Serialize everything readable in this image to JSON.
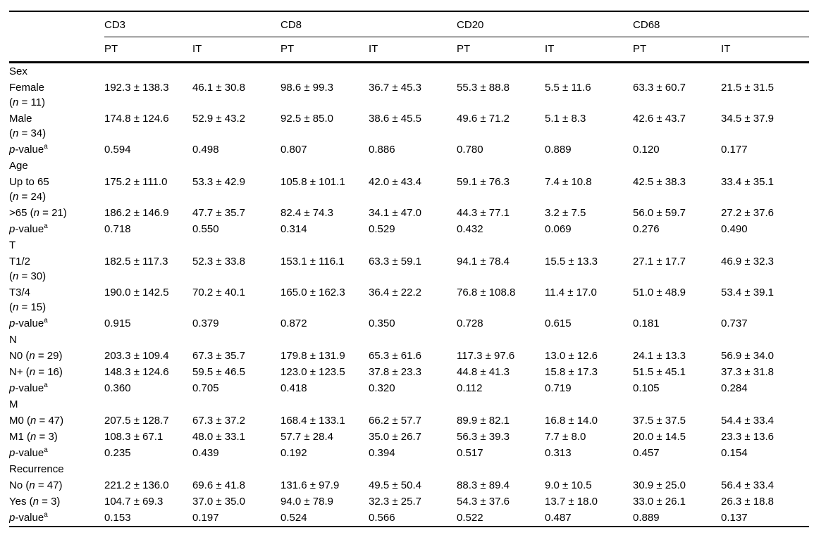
{
  "table": {
    "header": {
      "groups": [
        {
          "label": "CD3"
        },
        {
          "label": "CD8"
        },
        {
          "label": "CD20"
        },
        {
          "label": "CD68"
        }
      ],
      "subcolumns": [
        "PT",
        "IT"
      ]
    },
    "rows": [
      {
        "type": "section",
        "label": "Sex"
      },
      {
        "type": "data",
        "label": "Female",
        "n_label": "(n = 11)",
        "two_line": true,
        "values": [
          "192.3 ± 138.3",
          "46.1 ± 30.8",
          "98.6 ± 99.3",
          "36.7 ± 45.3",
          "55.3 ± 88.8",
          "5.5 ± 11.6",
          "63.3 ± 60.7",
          "21.5 ± 31.5"
        ]
      },
      {
        "type": "data",
        "label": "Male",
        "n_label": "(n = 34)",
        "two_line": true,
        "values": [
          "174.8 ± 124.6",
          "52.9 ± 43.2",
          "92.5 ± 85.0",
          "38.6 ± 45.5",
          "49.6 ± 71.2",
          "5.1 ± 8.3",
          "42.6 ± 43.7",
          "34.5 ± 37.9"
        ]
      },
      {
        "type": "pvalue",
        "label": "p-value",
        "sup": "a",
        "values": [
          "0.594",
          "0.498",
          "0.807",
          "0.886",
          "0.780",
          "0.889",
          "0.120",
          "0.177"
        ]
      },
      {
        "type": "section",
        "label": "Age"
      },
      {
        "type": "data",
        "label": "Up to 65",
        "n_label": "(n = 24)",
        "two_line": true,
        "values": [
          "175.2 ± 111.0",
          "53.3 ± 42.9",
          "105.8 ± 101.1",
          "42.0 ± 43.4",
          "59.1 ± 76.3",
          "7.4 ± 10.8",
          "42.5 ± 38.3",
          "33.4 ± 35.1"
        ]
      },
      {
        "type": "data",
        "label": ">65",
        "n_label": "(n = 21)",
        "two_line": false,
        "values": [
          "186.2 ± 146.9",
          "47.7 ± 35.7",
          "82.4 ± 74.3",
          "34.1 ± 47.0",
          "44.3 ± 77.1",
          "3.2 ± 7.5",
          "56.0 ± 59.7",
          "27.2 ± 37.6"
        ]
      },
      {
        "type": "pvalue",
        "label": "p-value",
        "sup": "a",
        "values": [
          "0.718",
          "0.550",
          "0.314",
          "0.529",
          "0.432",
          "0.069",
          "0.276",
          "0.490"
        ]
      },
      {
        "type": "section",
        "label": "T"
      },
      {
        "type": "data",
        "label": "T1/2",
        "n_label": "(n = 30)",
        "two_line": true,
        "values": [
          "182.5 ± 117.3",
          "52.3 ± 33.8",
          "153.1 ± 116.1",
          "63.3 ± 59.1",
          "94.1 ± 78.4",
          "15.5 ± 13.3",
          "27.1 ± 17.7",
          "46.9 ± 32.3"
        ]
      },
      {
        "type": "data",
        "label": "T3/4",
        "n_label": "(n = 15)",
        "two_line": true,
        "values": [
          "190.0 ± 142.5",
          "70.2 ± 40.1",
          "165.0 ± 162.3",
          "36.4 ± 22.2",
          "76.8 ± 108.8",
          "11.4 ± 17.0",
          "51.0 ± 48.9",
          "53.4 ± 39.1"
        ]
      },
      {
        "type": "pvalue",
        "label": "p-value",
        "sup": "a",
        "values": [
          "0.915",
          "0.379",
          "0.872",
          "0.350",
          "0.728",
          "0.615",
          "0.181",
          "0.737"
        ]
      },
      {
        "type": "section",
        "label": "N"
      },
      {
        "type": "data",
        "label": "N0",
        "n_label": "(n = 29)",
        "two_line": false,
        "values": [
          "203.3 ± 109.4",
          "67.3 ± 35.7",
          "179.8 ± 131.9",
          "65.3 ± 61.6",
          "117.3 ± 97.6",
          "13.0 ± 12.6",
          "24.1 ± 13.3",
          "56.9 ± 34.0"
        ]
      },
      {
        "type": "data",
        "label": "N+",
        "n_label": "(n = 16)",
        "two_line": false,
        "values": [
          "148.3 ± 124.6",
          "59.5 ± 46.5",
          "123.0 ± 123.5",
          "37.8 ± 23.3",
          "44.8 ± 41.3",
          "15.8 ± 17.3",
          "51.5 ± 45.1",
          "37.3 ± 31.8"
        ]
      },
      {
        "type": "pvalue",
        "label": "p-value",
        "sup": "a",
        "values": [
          "0.360",
          "0.705",
          "0.418",
          "0.320",
          "0.112",
          "0.719",
          "0.105",
          "0.284"
        ]
      },
      {
        "type": "section",
        "label": "M"
      },
      {
        "type": "data",
        "label": "M0",
        "n_label": "(n = 47)",
        "two_line": false,
        "values": [
          "207.5 ± 128.7",
          "67.3 ± 37.2",
          "168.4 ± 133.1",
          "66.2 ± 57.7",
          "89.9 ± 82.1",
          "16.8 ± 14.0",
          "37.5 ± 37.5",
          "54.4 ± 33.4"
        ]
      },
      {
        "type": "data",
        "label": "M1",
        "n_label": "(n = 3)",
        "two_line": false,
        "values": [
          "108.3 ± 67.1",
          "48.0 ± 33.1",
          "57.7 ± 28.4",
          "35.0 ± 26.7",
          "56.3 ± 39.3",
          "7.7 ± 8.0",
          "20.0 ± 14.5",
          "23.3 ± 13.6"
        ]
      },
      {
        "type": "pvalue",
        "label": "p-value",
        "sup": "a",
        "values": [
          "0.235",
          "0.439",
          "0.192",
          "0.394",
          "0.517",
          "0.313",
          "0.457",
          "0.154"
        ]
      },
      {
        "type": "section",
        "label": "Recurrence"
      },
      {
        "type": "data",
        "label": "No",
        "n_label": "(n = 47)",
        "two_line": false,
        "values": [
          "221.2 ± 136.0",
          "69.6 ± 41.8",
          "131.6 ± 97.9",
          "49.5 ± 50.4",
          "88.3 ± 89.4",
          "9.0 ± 10.5",
          "30.9 ± 25.0",
          "56.4 ± 33.4"
        ]
      },
      {
        "type": "data",
        "label": "Yes",
        "n_label": "(n = 3)",
        "two_line": false,
        "values": [
          "104.7 ± 69.3",
          "37.0 ± 35.0",
          "94.0 ± 78.9",
          "32.3 ± 25.7",
          "54.3 ± 37.6",
          "13.7 ± 18.0",
          "33.0 ± 26.1",
          "26.3 ± 18.8"
        ]
      },
      {
        "type": "pvalue",
        "label": "p-value",
        "sup": "a",
        "values": [
          "0.153",
          "0.197",
          "0.524",
          "0.566",
          "0.522",
          "0.487",
          "0.889",
          "0.137"
        ]
      }
    ]
  },
  "colors": {
    "background": "#ffffff",
    "text": "#000000",
    "rule": "#000000"
  }
}
